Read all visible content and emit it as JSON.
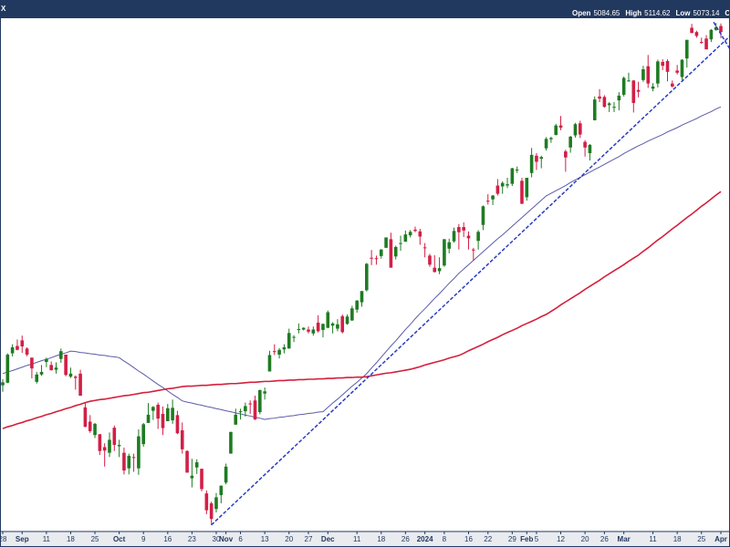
{
  "header": {
    "symbol": "X",
    "ohlc": [
      {
        "label": "Open",
        "value": 5084.65
      },
      {
        "label": "High",
        "value": 5114.62
      },
      {
        "label": "Low",
        "value": 5073.14
      },
      {
        "label": "Close"
      }
    ]
  },
  "chart_data": {
    "type": "candlestick",
    "categories": [
      "28",
      null,
      null,
      null,
      "Sep",
      null,
      null,
      null,
      null,
      "11",
      null,
      null,
      null,
      null,
      "18",
      null,
      null,
      null,
      null,
      "25",
      null,
      null,
      null,
      null,
      "Oct",
      null,
      null,
      null,
      null,
      "9",
      null,
      null,
      null,
      null,
      "16",
      null,
      null,
      null,
      null,
      "23",
      null,
      null,
      null,
      null,
      "30",
      null,
      "Nov",
      null,
      null,
      "6",
      null,
      null,
      null,
      null,
      "13",
      null,
      null,
      null,
      null,
      "20",
      null,
      null,
      null,
      "27",
      null,
      null,
      null,
      "Dec",
      null,
      null,
      null,
      null,
      null,
      "11",
      null,
      null,
      null,
      null,
      "18",
      null,
      null,
      null,
      null,
      "26",
      null,
      null,
      null,
      "2024",
      null,
      null,
      null,
      "8",
      null,
      null,
      null,
      null,
      "16",
      null,
      null,
      null,
      "22",
      null,
      null,
      null,
      null,
      "29",
      null,
      null,
      "Feb",
      null,
      "5",
      null,
      null,
      null,
      null,
      "12",
      null,
      null,
      null,
      null,
      "20",
      null,
      null,
      null,
      "26",
      null,
      null,
      null,
      "Mar",
      null,
      null,
      null,
      null,
      null,
      "11",
      null,
      null,
      null,
      null,
      "18",
      null,
      null,
      null,
      null,
      "25",
      null,
      null,
      null,
      "Apr"
    ],
    "open": [
      4426,
      4432,
      4500,
      4517,
      4530,
      4511,
      4490,
      4434,
      4451,
      4480,
      4473,
      4462,
      4487,
      4497,
      4446,
      4446,
      4453,
      4375,
      4342,
      4311,
      4313,
      4283,
      4270,
      4328,
      4285,
      4270,
      4234,
      4260,
      4234,
      4290,
      4339,
      4367,
      4381,
      4360,
      4343,
      4345,
      4357,
      4322,
      4274,
      4211,
      4236,
      4233,
      4176,
      4153,
      4140,
      4172,
      4201,
      4268,
      4335,
      4364,
      4366,
      4384,
      4391,
      4364,
      4407,
      4458,
      4505,
      4497,
      4509,
      4511,
      4538,
      4554,
      4555,
      4555,
      4546,
      4571,
      4554,
      4559,
      4564,
      4557,
      4586,
      4568,
      4576,
      4601,
      4618,
      4646,
      4721,
      4720,
      4725,
      4744,
      4764,
      4724,
      4754,
      4758,
      4773,
      4786,
      4782,
      4745,
      4726,
      4698,
      4690,
      4703,
      4742,
      4759,
      4792,
      4792,
      4772,
      4740,
      4760,
      4797,
      4853,
      4856,
      4888,
      4886,
      4888,
      4892,
      4925,
      4899,
      4861,
      4917,
      4957,
      4950,
      4974,
      4995,
      5005,
      5027,
      4967,
      4976,
      5004,
      5032,
      4989,
      4963,
      5039,
      5094,
      5093,
      5074,
      5068,
      5085,
      5098,
      5131,
      5131,
      5109,
      5132,
      5164,
      5112,
      5124,
      5174,
      5176,
      5124,
      5154,
      5139,
      5182,
      5253,
      5243,
      5220,
      5228,
      5226,
      5248,
      5257
    ],
    "high": [
      4440,
      4500,
      4521,
      4532,
      4541,
      4514,
      4490,
      4457,
      4473,
      4490,
      4481,
      4479,
      4511,
      4497,
      4467,
      4449,
      4462,
      4386,
      4357,
      4339,
      4313,
      4292,
      4317,
      4333,
      4300,
      4282,
      4268,
      4268,
      4324,
      4339,
      4385,
      4378,
      4386,
      4377,
      4383,
      4393,
      4367,
      4340,
      4276,
      4256,
      4255,
      4233,
      4183,
      4157,
      4177,
      4194,
      4245,
      4319,
      4372,
      4372,
      4386,
      4391,
      4402,
      4416,
      4421,
      4506,
      4521,
      4512,
      4521,
      4557,
      4542,
      4569,
      4560,
      4562,
      4562,
      4588,
      4569,
      4599,
      4572,
      4579,
      4590,
      4590,
      4610,
      4623,
      4644,
      4709,
      4739,
      4726,
      4741,
      4768,
      4779,
      4749,
      4772,
      4784,
      4785,
      4793,
      4788,
      4755,
      4730,
      4727,
      4722,
      4764,
      4765,
      4791,
      4799,
      4803,
      4782,
      4744,
      4785,
      4842,
      4868,
      4866,
      4903,
      4898,
      4906,
      4929,
      4932,
      4906,
      4906,
      4975,
      4963,
      4957,
      5000,
      5001,
      5031,
      5049,
      4971,
      5003,
      5033,
      5038,
      4993,
      4984,
      5094,
      5111,
      5097,
      5081,
      5081,
      5104,
      5140,
      5149,
      5132,
      5128,
      5165,
      5190,
      5125,
      5179,
      5180,
      5180,
      5131,
      5167,
      5180,
      5225,
      5262,
      5246,
      5230,
      5236,
      5250,
      5264,
      5263
    ],
    "low": [
      4411,
      4431,
      4493,
      4507,
      4501,
      4493,
      4442,
      4430,
      4448,
      4468,
      4460,
      4453,
      4478,
      4447,
      4443,
      4416,
      4402,
      4329,
      4316,
      4304,
      4265,
      4238,
      4260,
      4274,
      4260,
      4220,
      4220,
      4226,
      4219,
      4284,
      4339,
      4346,
      4325,
      4311,
      4343,
      4337,
      4313,
      4268,
      4224,
      4190,
      4221,
      4181,
      4128,
      4103,
      4132,
      4153,
      4197,
      4268,
      4335,
      4347,
      4354,
      4360,
      4346,
      4359,
      4393,
      4458,
      4496,
      4488,
      4500,
      4511,
      4526,
      4546,
      4553,
      4546,
      4541,
      4548,
      4537,
      4558,
      4546,
      4551,
      4546,
      4566,
      4575,
      4594,
      4608,
      4643,
      4704,
      4705,
      4719,
      4744,
      4698,
      4717,
      4737,
      4758,
      4768,
      4780,
      4751,
      4722,
      4700,
      4687,
      4683,
      4700,
      4731,
      4756,
      4740,
      4769,
      4740,
      4714,
      4740,
      4785,
      4844,
      4843,
      4865,
      4869,
      4882,
      4887,
      4917,
      4845,
      4853,
      4907,
      4924,
      4928,
      4969,
      4987,
      5004,
      5016,
      4920,
      4964,
      4999,
      4998,
      4955,
      4946,
      5039,
      5081,
      5068,
      5058,
      5058,
      5062,
      5094,
      5128,
      5057,
      5092,
      5128,
      5114,
      5106,
      5115,
      5155,
      5129,
      5115,
      5145,
      5132,
      5161,
      5240,
      5230,
      5216,
      5203,
      5220,
      5246,
      5229
    ],
    "close": [
      4433,
      4497,
      4514,
      4508,
      4516,
      4497,
      4465,
      4451,
      4457,
      4487,
      4461,
      4467,
      4505,
      4450,
      4453,
      4443,
      4402,
      4330,
      4320,
      4337,
      4274,
      4275,
      4300,
      4288,
      4288,
      4229,
      4263,
      4258,
      4308,
      4336,
      4358,
      4376,
      4349,
      4327,
      4373,
      4374,
      4315,
      4278,
      4224,
      4217,
      4248,
      4186,
      4137,
      4117,
      4167,
      4194,
      4238,
      4318,
      4358,
      4366,
      4378,
      4383,
      4347,
      4415,
      4412,
      4496,
      4503,
      4508,
      4514,
      4547,
      4538,
      4556,
      4559,
      4550,
      4555,
      4551,
      4568,
      4595,
      4569,
      4567,
      4549,
      4585,
      4604,
      4622,
      4644,
      4707,
      4719,
      4719,
      4740,
      4768,
      4698,
      4746,
      4755,
      4775,
      4781,
      4783,
      4770,
      4743,
      4705,
      4688,
      4697,
      4764,
      4757,
      4783,
      4780,
      4784,
      4766,
      4739,
      4781,
      4840,
      4851,
      4865,
      4869,
      4894,
      4891,
      4928,
      4925,
      4846,
      4906,
      4959,
      4943,
      4954,
      4996,
      4998,
      5027,
      5022,
      4953,
      5001,
      5030,
      5006,
      4976,
      4982,
      5087,
      5089,
      5070,
      5078,
      5070,
      5096,
      5137,
      5131,
      5079,
      5105,
      5157,
      5124,
      5117,
      5175,
      5165,
      5151,
      5117,
      5149,
      5179,
      5225,
      5241,
      5234,
      5218,
      5203,
      5248,
      5254,
      5243
    ],
    "up_color": "#1e7b22",
    "down_color": "#d21f47",
    "series": [
      {
        "color": "#5b5ba8",
        "values": [
          4453,
          4457,
          4460,
          4464,
          4468,
          4472,
          4475,
          4479,
          4483,
          4486,
          4490,
          4494,
          4498,
          4501,
          4505,
          4504,
          4502,
          4501,
          4499,
          4498,
          4496,
          4495,
          4493,
          4492,
          4490,
          4482,
          4475,
          4467,
          4459,
          4452,
          4444,
          4436,
          4428,
          4421,
          4413,
          4405,
          4398,
          4390,
          4387,
          4385,
          4382,
          4380,
          4377,
          4375,
          4372,
          4370,
          4367,
          4365,
          4362,
          4360,
          4357,
          4355,
          4352,
          4350,
          4347,
          4349,
          4350,
          4352,
          4353,
          4355,
          4356,
          4358,
          4359,
          4361,
          4362,
          4364,
          4365,
          4375,
          4385,
          4394,
          4404,
          4414,
          4424,
          4433,
          4443,
          4453,
          4466,
          4478,
          4491,
          4504,
          4517,
          4529,
          4542,
          4555,
          4567,
          4580,
          4592,
          4603,
          4615,
          4627,
          4638,
          4650,
          4662,
          4673,
          4685,
          4695,
          4705,
          4715,
          4725,
          4735,
          4745,
          4755,
          4765,
          4774,
          4784,
          4794,
          4804,
          4814,
          4824,
          4834,
          4844,
          4854,
          4864,
          4870,
          4876,
          4882,
          4888,
          4895,
          4901,
          4907,
          4913,
          4919,
          4925,
          4931,
          4937,
          4943,
          4949,
          4955,
          4962,
          4968,
          4974,
          4980,
          4985,
          4991,
          4996,
          5001,
          5006,
          5012,
          5017,
          5022,
          5028,
          5033,
          5038,
          5043,
          5049,
          5054,
          5059,
          5065,
          5070
        ]
      },
      {
        "color": "#d3203c",
        "values": [
          4326,
          4330,
          4333,
          4337,
          4340,
          4344,
          4347,
          4351,
          4354,
          4358,
          4361,
          4365,
          4368,
          4372,
          4375,
          4379,
          4382,
          4386,
          4389,
          4391,
          4393,
          4394,
          4396,
          4398,
          4400,
          4402,
          4403,
          4405,
          4407,
          4409,
          4410,
          4412,
          4414,
          4416,
          4418,
          4419,
          4421,
          4423,
          4424,
          4424,
          4425,
          4426,
          4426,
          4427,
          4428,
          4428,
          4429,
          4430,
          4430,
          4431,
          4432,
          4433,
          4433,
          4434,
          4435,
          4435,
          4436,
          4437,
          4437,
          4438,
          4438,
          4439,
          4439,
          4440,
          4440,
          4441,
          4441,
          4442,
          4442,
          4443,
          4443,
          4444,
          4444,
          4445,
          4445,
          4446,
          4448,
          4450,
          4452,
          4454,
          4455,
          4457,
          4459,
          4461,
          4463,
          4466,
          4469,
          4473,
          4476,
          4479,
          4482,
          4485,
          4489,
          4492,
          4495,
          4500,
          4506,
          4511,
          4516,
          4521,
          4527,
          4532,
          4537,
          4543,
          4548,
          4553,
          4558,
          4564,
          4569,
          4574,
          4579,
          4585,
          4590,
          4597,
          4604,
          4612,
          4619,
          4626,
          4633,
          4640,
          4648,
          4655,
          4662,
          4669,
          4677,
          4684,
          4691,
          4698,
          4705,
          4713,
          4720,
          4727,
          4736,
          4744,
          4753,
          4762,
          4770,
          4779,
          4788,
          4796,
          4805,
          4814,
          4822,
          4831,
          4840,
          4848,
          4857,
          4866,
          4874
        ]
      }
    ],
    "trendlines": [
      {
        "color": "#2a3cc0",
        "points": [
          [
            43,
            4103
          ],
          [
            149.8,
            5233
          ]
        ]
      },
      {
        "color": "#2a3cc0",
        "points": [
          [
            146.5,
            5266
          ],
          [
            149.8,
            5205
          ]
        ]
      }
    ],
    "ylim": [
      4090,
      5275
    ]
  }
}
